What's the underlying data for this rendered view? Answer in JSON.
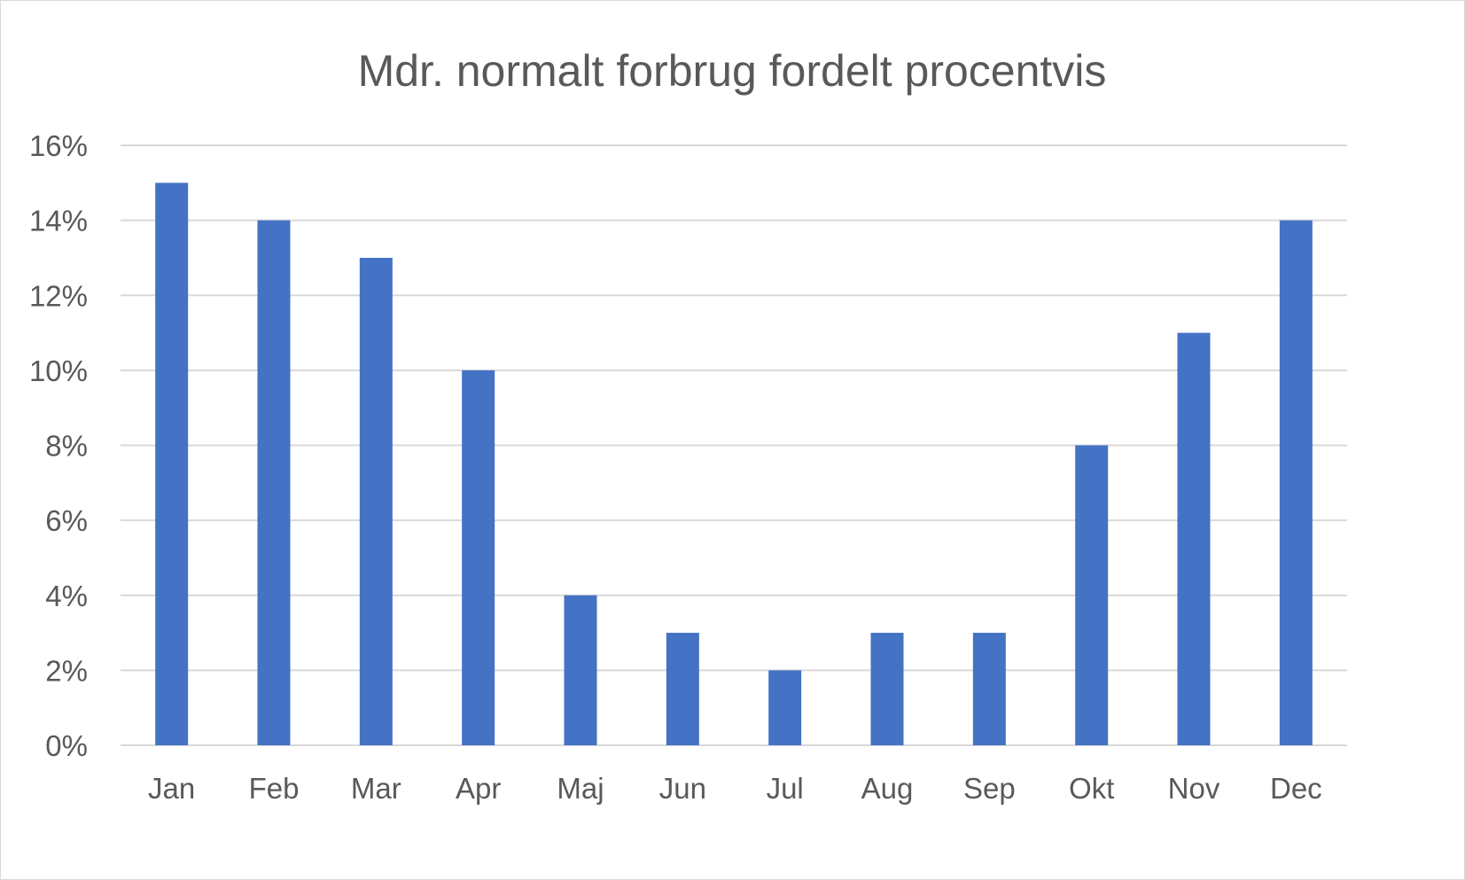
{
  "chart_data": {
    "type": "bar",
    "title": "Mdr. normalt forbrug fordelt procentvis",
    "xlabel": "",
    "ylabel": "",
    "categories": [
      "Jan",
      "Feb",
      "Mar",
      "Apr",
      "Maj",
      "Jun",
      "Jul",
      "Aug",
      "Sep",
      "Okt",
      "Nov",
      "Dec"
    ],
    "values": [
      15,
      14,
      13,
      10,
      4,
      3,
      2,
      3,
      3,
      8,
      11,
      14
    ],
    "y_unit": "%",
    "ylim": [
      0,
      16
    ],
    "y_ticks": [
      0,
      2,
      4,
      6,
      8,
      10,
      12,
      14,
      16
    ],
    "y_tick_labels": [
      "0%",
      "2%",
      "4%",
      "6%",
      "8%",
      "10%",
      "12%",
      "14%",
      "16%"
    ],
    "grid": true,
    "legend": "none",
    "colors": {
      "bar": "#4472C4",
      "grid": "#d9d9d9",
      "text": "#595959"
    }
  }
}
